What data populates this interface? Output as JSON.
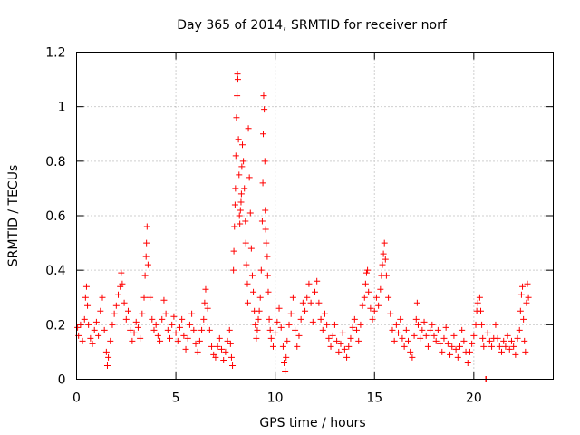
{
  "chart_data": {
    "type": "scatter",
    "title": "Day 365 of 2014, SRMTID for receiver norf",
    "xlabel": "GPS time / hours",
    "ylabel": "SRMTID / TECUs",
    "xlim": [
      0,
      24
    ],
    "ylim": [
      0,
      1.2
    ],
    "xticks": [
      0,
      5,
      10,
      15,
      20
    ],
    "xtick_labels": [
      "0",
      "5",
      "10",
      "15",
      "20"
    ],
    "yticks": [
      0,
      0.2,
      0.4,
      0.6,
      0.8,
      1.0,
      1.2
    ],
    "ytick_labels": [
      "0",
      "0.2",
      "0.4",
      "0.6",
      "0.8",
      "1",
      "1.2"
    ],
    "grid": true,
    "marker": "+",
    "color": "#ff0000",
    "series": [
      {
        "name": "norf",
        "points": [
          [
            0.05,
            0.19
          ],
          [
            0.1,
            0.16
          ],
          [
            0.2,
            0.2
          ],
          [
            0.3,
            0.14
          ],
          [
            0.4,
            0.22
          ],
          [
            0.45,
            0.3
          ],
          [
            0.5,
            0.34
          ],
          [
            0.55,
            0.27
          ],
          [
            0.6,
            0.2
          ],
          [
            0.7,
            0.15
          ],
          [
            0.8,
            0.13
          ],
          [
            0.9,
            0.18
          ],
          [
            1.0,
            0.21
          ],
          [
            1.1,
            0.16
          ],
          [
            1.2,
            0.25
          ],
          [
            1.3,
            0.3
          ],
          [
            1.4,
            0.18
          ],
          [
            1.5,
            0.1
          ],
          [
            1.55,
            0.05
          ],
          [
            1.6,
            0.08
          ],
          [
            1.7,
            0.14
          ],
          [
            1.8,
            0.2
          ],
          [
            1.9,
            0.24
          ],
          [
            2.0,
            0.27
          ],
          [
            2.1,
            0.31
          ],
          [
            2.2,
            0.34
          ],
          [
            2.25,
            0.39
          ],
          [
            2.3,
            0.35
          ],
          [
            2.4,
            0.28
          ],
          [
            2.5,
            0.22
          ],
          [
            2.6,
            0.25
          ],
          [
            2.7,
            0.18
          ],
          [
            2.8,
            0.14
          ],
          [
            2.9,
            0.17
          ],
          [
            3.0,
            0.21
          ],
          [
            3.1,
            0.19
          ],
          [
            3.2,
            0.15
          ],
          [
            3.3,
            0.24
          ],
          [
            3.4,
            0.3
          ],
          [
            3.45,
            0.38
          ],
          [
            3.5,
            0.45
          ],
          [
            3.52,
            0.5
          ],
          [
            3.55,
            0.56
          ],
          [
            3.6,
            0.42
          ],
          [
            3.7,
            0.3
          ],
          [
            3.8,
            0.22
          ],
          [
            3.9,
            0.18
          ],
          [
            4.0,
            0.2
          ],
          [
            4.1,
            0.16
          ],
          [
            4.2,
            0.14
          ],
          [
            4.3,
            0.22
          ],
          [
            4.4,
            0.29
          ],
          [
            4.5,
            0.24
          ],
          [
            4.6,
            0.18
          ],
          [
            4.7,
            0.15
          ],
          [
            4.8,
            0.2
          ],
          [
            4.9,
            0.23
          ],
          [
            5.0,
            0.17
          ],
          [
            5.1,
            0.14
          ],
          [
            5.2,
            0.19
          ],
          [
            5.3,
            0.22
          ],
          [
            5.4,
            0.16
          ],
          [
            5.5,
            0.11
          ],
          [
            5.6,
            0.15
          ],
          [
            5.7,
            0.2
          ],
          [
            5.8,
            0.24
          ],
          [
            5.9,
            0.18
          ],
          [
            6.0,
            0.13
          ],
          [
            6.1,
            0.1
          ],
          [
            6.2,
            0.14
          ],
          [
            6.3,
            0.18
          ],
          [
            6.4,
            0.22
          ],
          [
            6.45,
            0.28
          ],
          [
            6.5,
            0.33
          ],
          [
            6.6,
            0.26
          ],
          [
            6.7,
            0.18
          ],
          [
            6.8,
            0.12
          ],
          [
            6.9,
            0.09
          ],
          [
            7.0,
            0.08
          ],
          [
            7.1,
            0.12
          ],
          [
            7.2,
            0.15
          ],
          [
            7.3,
            0.11
          ],
          [
            7.4,
            0.07
          ],
          [
            7.5,
            0.1
          ],
          [
            7.6,
            0.14
          ],
          [
            7.7,
            0.18
          ],
          [
            7.75,
            0.13
          ],
          [
            7.8,
            0.08
          ],
          [
            7.85,
            0.05
          ],
          [
            7.9,
            0.4
          ],
          [
            7.92,
            0.47
          ],
          [
            7.95,
            0.56
          ],
          [
            7.98,
            0.64
          ],
          [
            8.0,
            0.7
          ],
          [
            8.02,
            0.82
          ],
          [
            8.05,
            0.96
          ],
          [
            8.08,
            1.04
          ],
          [
            8.1,
            1.12
          ],
          [
            8.12,
            1.1
          ],
          [
            8.15,
            0.88
          ],
          [
            8.18,
            0.75
          ],
          [
            8.2,
            0.6
          ],
          [
            8.22,
            0.57
          ],
          [
            8.25,
            0.62
          ],
          [
            8.28,
            0.65
          ],
          [
            8.3,
            0.68
          ],
          [
            8.32,
            0.78
          ],
          [
            8.35,
            0.86
          ],
          [
            8.4,
            0.8
          ],
          [
            8.45,
            0.7
          ],
          [
            8.5,
            0.58
          ],
          [
            8.52,
            0.5
          ],
          [
            8.55,
            0.42
          ],
          [
            8.6,
            0.35
          ],
          [
            8.62,
            0.28
          ],
          [
            8.65,
            0.92
          ],
          [
            8.7,
            0.74
          ],
          [
            8.75,
            0.61
          ],
          [
            8.8,
            0.48
          ],
          [
            8.85,
            0.38
          ],
          [
            8.9,
            0.32
          ],
          [
            8.95,
            0.25
          ],
          [
            9.0,
            0.2
          ],
          [
            9.05,
            0.15
          ],
          [
            9.1,
            0.18
          ],
          [
            9.15,
            0.22
          ],
          [
            9.2,
            0.25
          ],
          [
            9.25,
            0.3
          ],
          [
            9.3,
            0.4
          ],
          [
            9.35,
            0.58
          ],
          [
            9.38,
            0.72
          ],
          [
            9.4,
            0.9
          ],
          [
            9.42,
            1.04
          ],
          [
            9.45,
            0.99
          ],
          [
            9.48,
            0.8
          ],
          [
            9.5,
            0.62
          ],
          [
            9.52,
            0.55
          ],
          [
            9.55,
            0.5
          ],
          [
            9.6,
            0.45
          ],
          [
            9.62,
            0.38
          ],
          [
            9.65,
            0.32
          ],
          [
            9.7,
            0.22
          ],
          [
            9.75,
            0.18
          ],
          [
            9.8,
            0.15
          ],
          [
            9.9,
            0.12
          ],
          [
            10.0,
            0.17
          ],
          [
            10.1,
            0.21
          ],
          [
            10.2,
            0.26
          ],
          [
            10.3,
            0.19
          ],
          [
            10.4,
            0.12
          ],
          [
            10.45,
            0.06
          ],
          [
            10.5,
            0.03
          ],
          [
            10.55,
            0.08
          ],
          [
            10.6,
            0.14
          ],
          [
            10.7,
            0.2
          ],
          [
            10.8,
            0.24
          ],
          [
            10.9,
            0.3
          ],
          [
            11.0,
            0.18
          ],
          [
            11.1,
            0.12
          ],
          [
            11.2,
            0.16
          ],
          [
            11.3,
            0.22
          ],
          [
            11.4,
            0.28
          ],
          [
            11.5,
            0.25
          ],
          [
            11.6,
            0.3
          ],
          [
            11.7,
            0.35
          ],
          [
            11.8,
            0.28
          ],
          [
            11.9,
            0.21
          ],
          [
            12.0,
            0.32
          ],
          [
            12.1,
            0.36
          ],
          [
            12.2,
            0.28
          ],
          [
            12.3,
            0.22
          ],
          [
            12.4,
            0.18
          ],
          [
            12.5,
            0.24
          ],
          [
            12.6,
            0.2
          ],
          [
            12.7,
            0.15
          ],
          [
            12.8,
            0.12
          ],
          [
            12.9,
            0.16
          ],
          [
            13.0,
            0.2
          ],
          [
            13.1,
            0.14
          ],
          [
            13.2,
            0.1
          ],
          [
            13.3,
            0.13
          ],
          [
            13.4,
            0.17
          ],
          [
            13.5,
            0.11
          ],
          [
            13.6,
            0.08
          ],
          [
            13.7,
            0.12
          ],
          [
            13.8,
            0.15
          ],
          [
            13.9,
            0.19
          ],
          [
            14.0,
            0.22
          ],
          [
            14.1,
            0.18
          ],
          [
            14.2,
            0.14
          ],
          [
            14.3,
            0.2
          ],
          [
            14.4,
            0.27
          ],
          [
            14.5,
            0.3
          ],
          [
            14.55,
            0.35
          ],
          [
            14.6,
            0.39
          ],
          [
            14.65,
            0.4
          ],
          [
            14.7,
            0.32
          ],
          [
            14.8,
            0.26
          ],
          [
            14.9,
            0.22
          ],
          [
            15.0,
            0.25
          ],
          [
            15.1,
            0.3
          ],
          [
            15.2,
            0.27
          ],
          [
            15.3,
            0.33
          ],
          [
            15.35,
            0.38
          ],
          [
            15.4,
            0.42
          ],
          [
            15.45,
            0.46
          ],
          [
            15.5,
            0.5
          ],
          [
            15.55,
            0.44
          ],
          [
            15.6,
            0.38
          ],
          [
            15.7,
            0.3
          ],
          [
            15.8,
            0.24
          ],
          [
            15.9,
            0.18
          ],
          [
            16.0,
            0.14
          ],
          [
            16.1,
            0.2
          ],
          [
            16.2,
            0.17
          ],
          [
            16.3,
            0.22
          ],
          [
            16.4,
            0.15
          ],
          [
            16.5,
            0.12
          ],
          [
            16.6,
            0.18
          ],
          [
            16.7,
            0.14
          ],
          [
            16.8,
            0.1
          ],
          [
            16.9,
            0.08
          ],
          [
            17.0,
            0.16
          ],
          [
            17.1,
            0.22
          ],
          [
            17.15,
            0.28
          ],
          [
            17.2,
            0.2
          ],
          [
            17.3,
            0.15
          ],
          [
            17.4,
            0.18
          ],
          [
            17.5,
            0.21
          ],
          [
            17.6,
            0.16
          ],
          [
            17.7,
            0.12
          ],
          [
            17.8,
            0.18
          ],
          [
            17.9,
            0.2
          ],
          [
            18.0,
            0.16
          ],
          [
            18.1,
            0.14
          ],
          [
            18.2,
            0.18
          ],
          [
            18.3,
            0.13
          ],
          [
            18.4,
            0.1
          ],
          [
            18.5,
            0.15
          ],
          [
            18.6,
            0.19
          ],
          [
            18.7,
            0.13
          ],
          [
            18.8,
            0.09
          ],
          [
            18.9,
            0.12
          ],
          [
            19.0,
            0.16
          ],
          [
            19.1,
            0.11
          ],
          [
            19.2,
            0.08
          ],
          [
            19.3,
            0.12
          ],
          [
            19.4,
            0.18
          ],
          [
            19.5,
            0.14
          ],
          [
            19.6,
            0.1
          ],
          [
            19.7,
            0.06
          ],
          [
            19.8,
            0.1
          ],
          [
            19.9,
            0.13
          ],
          [
            20.0,
            0.16
          ],
          [
            20.1,
            0.2
          ],
          [
            20.15,
            0.25
          ],
          [
            20.2,
            0.28
          ],
          [
            20.3,
            0.3
          ],
          [
            20.35,
            0.25
          ],
          [
            20.4,
            0.2
          ],
          [
            20.45,
            0.15
          ],
          [
            20.5,
            0.12
          ],
          [
            20.6,
            0.0
          ],
          [
            20.62,
            0.0
          ],
          [
            20.7,
            0.17
          ],
          [
            20.8,
            0.14
          ],
          [
            20.9,
            0.12
          ],
          [
            21.0,
            0.15
          ],
          [
            21.1,
            0.2
          ],
          [
            21.2,
            0.15
          ],
          [
            21.3,
            0.12
          ],
          [
            21.4,
            0.1
          ],
          [
            21.5,
            0.14
          ],
          [
            21.6,
            0.12
          ],
          [
            21.7,
            0.16
          ],
          [
            21.8,
            0.11
          ],
          [
            21.9,
            0.14
          ],
          [
            22.0,
            0.12
          ],
          [
            22.1,
            0.09
          ],
          [
            22.2,
            0.15
          ],
          [
            22.3,
            0.18
          ],
          [
            22.35,
            0.25
          ],
          [
            22.4,
            0.31
          ],
          [
            22.45,
            0.34
          ],
          [
            22.5,
            0.22
          ],
          [
            22.55,
            0.14
          ],
          [
            22.6,
            0.1
          ],
          [
            22.65,
            0.28
          ],
          [
            22.7,
            0.35
          ],
          [
            22.75,
            0.3
          ]
        ]
      }
    ]
  }
}
